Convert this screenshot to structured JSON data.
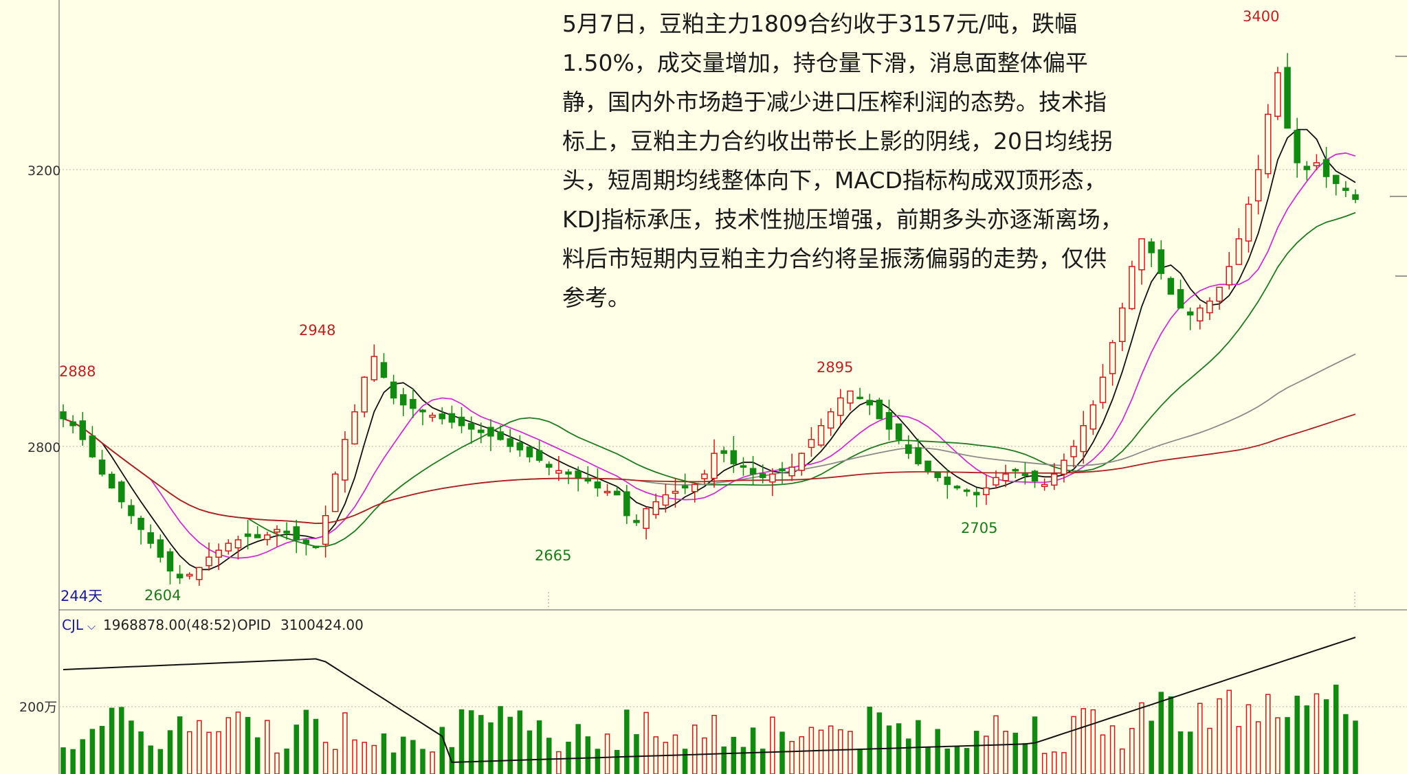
{
  "chart_data": {
    "type": "candlestick",
    "instrument_note": "豆粕主力1809合约",
    "price_axis": {
      "ticks": [
        3200,
        2800
      ],
      "ylim": [
        2580,
        3440
      ]
    },
    "period_label": "244天",
    "annotations": {
      "start_value": "2888",
      "high_1": "2948",
      "low_1": "2604",
      "low_2": "2665",
      "high_2": "2895",
      "low_3": "2705",
      "high_max": "3400"
    },
    "price_series_approx": [
      2840,
      2830,
      2810,
      2785,
      2760,
      2740,
      2720,
      2700,
      2680,
      2660,
      2640,
      2620,
      2610,
      2615,
      2625,
      2640,
      2650,
      2660,
      2665,
      2670,
      2668,
      2672,
      2680,
      2675,
      2665,
      2660,
      2655,
      2700,
      2760,
      2810,
      2850,
      2900,
      2930,
      2900,
      2870,
      2860,
      2855,
      2850,
      2845,
      2840,
      2835,
      2830,
      2825,
      2820,
      2815,
      2810,
      2800,
      2795,
      2785,
      2780,
      2770,
      2765,
      2760,
      2755,
      2750,
      2740,
      2735,
      2730,
      2700,
      2690,
      2710,
      2720,
      2730,
      2735,
      2740,
      2745,
      2760,
      2790,
      2790,
      2775,
      2770,
      2760,
      2755,
      2760,
      2765,
      2770,
      2790,
      2810,
      2830,
      2850,
      2870,
      2880,
      2870,
      2860,
      2840,
      2825,
      2810,
      2790,
      2775,
      2765,
      2755,
      2745,
      2740,
      2735,
      2730,
      2740,
      2755,
      2760,
      2765,
      2760,
      2750,
      2745,
      2760,
      2780,
      2800,
      2830,
      2860,
      2900,
      2950,
      3000,
      3060,
      3100,
      3080,
      3050,
      3020,
      3000,
      2990,
      3000,
      3010,
      3030,
      3060,
      3100,
      3150,
      3200,
      3280,
      3340,
      3260,
      3210,
      3200,
      3210,
      3190,
      3180,
      3170,
      3157
    ],
    "ma_note": "MA5 黑, MA10 品红, MA20 深绿, MA60 灰, MA120 暗红",
    "volume_panel": {
      "indicator_label": "CJL",
      "cjl_value": "1968878.00(48:52)",
      "opid_label": "OPID",
      "opid_value": "3100424.00",
      "axis_tick": "200万"
    }
  },
  "commentary": "5月7日，豆粕主力1809合约收于3157元/吨，跌幅1.50%，成交量增加，持仓量下滑，消息面整体偏平静，国内外市场趋于减少进口压榨利润的态势。技术指标上，豆粕主力合约收出带长上影的阴线，20日均线拐头，短周期均线整体向下，MACD指标构成双顶形态，KDJ指标承压，技术性抛压增强，前期多头亦逐渐离场，料后市短期内豆粕主力合约将呈振荡偏弱的走势，仅供参考。",
  "colors": {
    "up": "#d01818",
    "down": "#118a11",
    "ma5": "#101010",
    "ma10": "#d030d0",
    "ma20": "#1e7a1e",
    "ma60": "#8a8a8a",
    "ma120": "#b02020",
    "background": "#ffffe8"
  }
}
